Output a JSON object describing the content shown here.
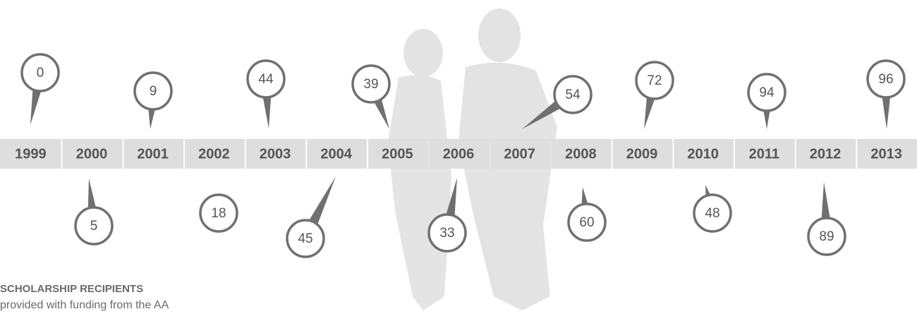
{
  "title": "SCHOLARSHIP RECIPIENTS",
  "subtitle": "provided with funding from the AA",
  "timeline": [
    {
      "year": "1999",
      "count": 0
    },
    {
      "year": "2000",
      "count": 5
    },
    {
      "year": "2001",
      "count": 9
    },
    {
      "year": "2002",
      "count": 18
    },
    {
      "year": "2003",
      "count": 44
    },
    {
      "year": "2004",
      "count": 45
    },
    {
      "year": "2005",
      "count": 39
    },
    {
      "year": "2006",
      "count": 33
    },
    {
      "year": "2007",
      "count": 54
    },
    {
      "year": "2008",
      "count": 60
    },
    {
      "year": "2009",
      "count": 72
    },
    {
      "year": "2010",
      "count": 48
    },
    {
      "year": "2011",
      "count": 94
    },
    {
      "year": "2012",
      "count": 89
    },
    {
      "year": "2013",
      "count": 96
    }
  ]
}
